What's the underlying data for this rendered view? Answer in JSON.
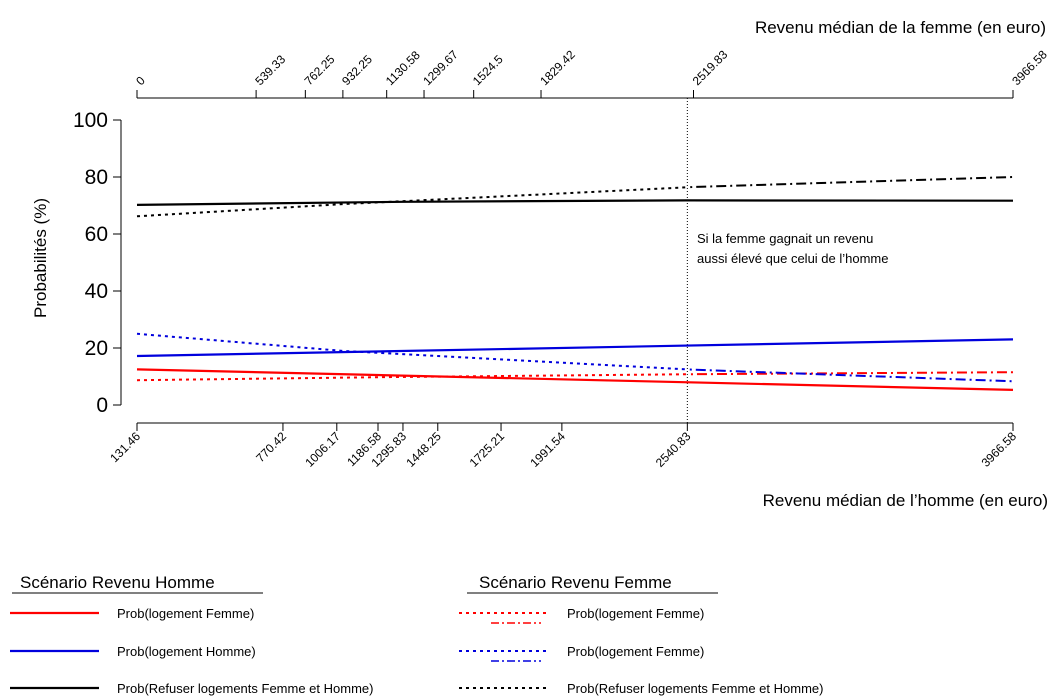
{
  "chart_data": {
    "type": "line",
    "ylabel": "Probabilités (%)",
    "ylim": [
      0,
      100
    ],
    "yticks": [
      0,
      20,
      40,
      60,
      80,
      100
    ],
    "bottom_axis": {
      "label": "Revenu médian de l’homme (en euro)",
      "ticks": [
        "131.46",
        "770.42",
        "1006.17",
        "1186.58",
        "1295.83",
        "1448.25",
        "1725.21",
        "1991.54",
        "2540.83",
        "3966.58"
      ],
      "tick_values": [
        131.46,
        770.42,
        1006.17,
        1186.58,
        1295.83,
        1448.25,
        1725.21,
        1991.54,
        2540.83,
        3966.58
      ]
    },
    "top_axis": {
      "label": "Revenu médian de la femme (en euro)",
      "ticks": [
        "0",
        "539.33",
        "762.25",
        "932.25",
        "1130.58",
        "1299.67",
        "1524.5",
        "1829.42",
        "2519.83",
        "3966.58"
      ],
      "tick_values": [
        0,
        539.33,
        762.25,
        932.25,
        1130.58,
        1299.67,
        1524.5,
        1829.42,
        2519.83,
        3966.58
      ]
    },
    "reference_line": {
      "x": 2540.83,
      "annotation": [
        "Si la femme gagnait un revenu",
        "aussi élevé que celui de l’homme"
      ]
    },
    "series": [
      {
        "name": "Prob(logement Femme)",
        "scenario": "homme",
        "axis": "bottom",
        "color": "#ff0000",
        "style": "solid",
        "x": [
          131.46,
          3966.58
        ],
        "y": [
          12.5,
          5.3
        ]
      },
      {
        "name": "Prob(logement Homme)",
        "scenario": "homme",
        "axis": "bottom",
        "color": "#0000dd",
        "style": "solid",
        "x": [
          131.46,
          3966.58
        ],
        "y": [
          17.2,
          23.0
        ]
      },
      {
        "name": "Prob(Refuser logements Femme et Homme)",
        "scenario": "homme",
        "axis": "bottom",
        "color": "#000000",
        "style": "solid",
        "x": [
          131.46,
          1295.83,
          2540.83,
          3966.58
        ],
        "y": [
          70.2,
          71.3,
          71.8,
          71.7
        ]
      },
      {
        "name": "Prob(logement Femme)",
        "scenario": "femme",
        "axis": "top",
        "color": "#ff0000",
        "style": "dash-then-dashdot",
        "x": [
          0,
          1130.58,
          2519.83,
          3966.58
        ],
        "y": [
          8.7,
          9.8,
          10.8,
          11.5
        ]
      },
      {
        "name": "Prob(logement Femme)",
        "scenario": "femme",
        "axis": "top",
        "color": "#0000dd",
        "style": "dash-then-dashdot",
        "x": [
          0,
          932.25,
          2519.83,
          3966.58
        ],
        "y": [
          25.0,
          19.0,
          12.4,
          8.3
        ]
      },
      {
        "name": "Prob(Refuser logements Femme et Homme)",
        "scenario": "femme",
        "axis": "top",
        "color": "#000000",
        "style": "dash-then-dashdot",
        "x": [
          0,
          932.25,
          2519.83,
          3966.58
        ],
        "y": [
          66.2,
          70.5,
          76.5,
          80.0
        ]
      }
    ],
    "legend": {
      "placement": "bottom",
      "groups": [
        {
          "title": "Scénario Revenu Homme",
          "entries": [
            {
              "label": "Prob(logement Femme)",
              "color": "#ff0000",
              "style": "solid"
            },
            {
              "label": "Prob(logement Homme)",
              "color": "#0000dd",
              "style": "solid"
            },
            {
              "label": "Prob(Refuser logements Femme et Homme)",
              "color": "#000000",
              "style": "solid"
            }
          ]
        },
        {
          "title": "Scénario Revenu Femme",
          "entries": [
            {
              "label": "Prob(logement Femme)",
              "color": "#ff0000",
              "style": "dash-then-dashdot"
            },
            {
              "label": "Prob(logement Femme)",
              "color": "#0000dd",
              "style": "dash-then-dashdot"
            },
            {
              "label": "Prob(Refuser logements Femme et Homme)",
              "color": "#000000",
              "style": "dash-then-dashdot"
            }
          ]
        }
      ]
    }
  }
}
